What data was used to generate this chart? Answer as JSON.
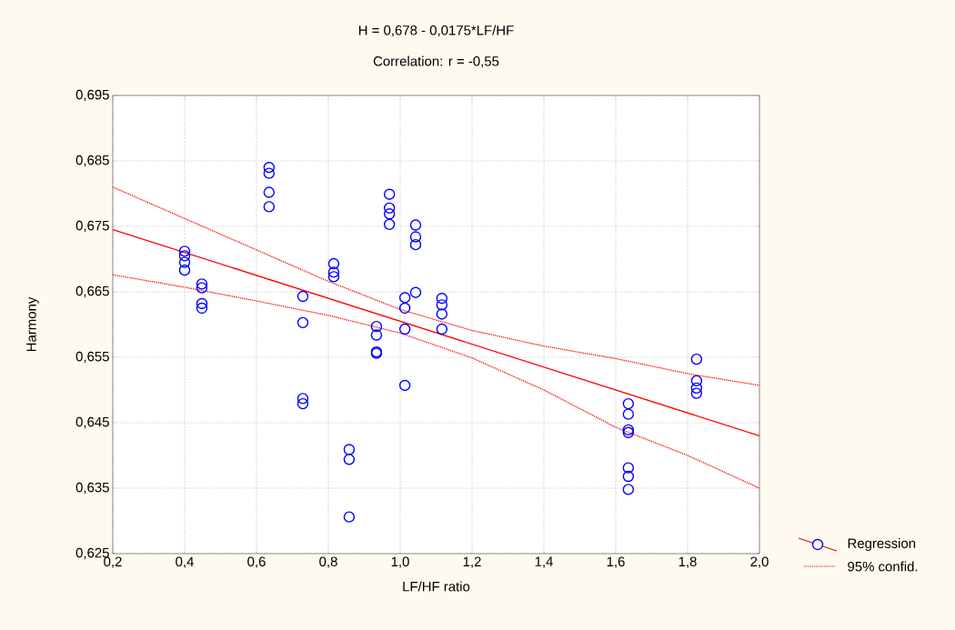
{
  "chart_data": {
    "type": "scatter",
    "title": "H = 0,678 - 0,0175*LF/HF",
    "subtitle": "Correlation: r = -0,55",
    "xlabel": "LF/HF ratio",
    "ylabel": "Harmony",
    "xlim": [
      0.2,
      2.0
    ],
    "ylim": [
      0.625,
      0.695
    ],
    "xticks": [
      {
        "value": 0.2,
        "label": "0,2"
      },
      {
        "value": 0.4,
        "label": "0,4"
      },
      {
        "value": 0.6,
        "label": "0,6"
      },
      {
        "value": 0.8,
        "label": "0,8"
      },
      {
        "value": 1.0,
        "label": "1,0"
      },
      {
        "value": 1.2,
        "label": "1,2"
      },
      {
        "value": 1.4,
        "label": "1,4"
      },
      {
        "value": 1.6,
        "label": "1,6"
      },
      {
        "value": 1.8,
        "label": "1,8"
      },
      {
        "value": 2.0,
        "label": "2,0"
      }
    ],
    "yticks": [
      {
        "value": 0.625,
        "label": "0,625"
      },
      {
        "value": 0.635,
        "label": "0,635"
      },
      {
        "value": 0.645,
        "label": "0,645"
      },
      {
        "value": 0.655,
        "label": "0,655"
      },
      {
        "value": 0.665,
        "label": "0,665"
      },
      {
        "value": 0.675,
        "label": "0,675"
      },
      {
        "value": 0.685,
        "label": "0,685"
      },
      {
        "value": 0.695,
        "label": "0,695"
      }
    ],
    "grid": true,
    "legend": "right",
    "series": [
      {
        "color": "#0000ff",
        "marker": "circle",
        "x": [
          0.4,
          0.4,
          0.4,
          0.4,
          0.448,
          0.448,
          0.448,
          0.448,
          0.635,
          0.635,
          0.635,
          0.635,
          0.729,
          0.729,
          0.729,
          0.729,
          0.815,
          0.815,
          0.815,
          0.858,
          0.858,
          0.858,
          0.934,
          0.934,
          0.934,
          0.934,
          0.97,
          0.97,
          0.97,
          0.97,
          1.013,
          1.013,
          1.013,
          1.013,
          1.043,
          1.043,
          1.043,
          1.043,
          1.116,
          1.116,
          1.116,
          1.116,
          1.635,
          1.635,
          1.635,
          1.635,
          1.635,
          1.635,
          1.635,
          1.825,
          1.825,
          1.825,
          1.825
        ],
        "values": [
          0.6712,
          0.6705,
          0.6695,
          0.6683,
          0.6662,
          0.6656,
          0.6632,
          0.6625,
          0.684,
          0.6831,
          0.6802,
          0.678,
          0.6643,
          0.6603,
          0.6487,
          0.6479,
          0.6693,
          0.668,
          0.6673,
          0.6409,
          0.6394,
          0.6306,
          0.6597,
          0.6584,
          0.6558,
          0.6556,
          0.6799,
          0.6778,
          0.6769,
          0.6753,
          0.6641,
          0.6625,
          0.6593,
          0.6507,
          0.6752,
          0.6734,
          0.6722,
          0.6649,
          0.664,
          0.663,
          0.6616,
          0.6593,
          0.6479,
          0.6463,
          0.6439,
          0.6435,
          0.6381,
          0.6368,
          0.6348,
          0.6547,
          0.6514,
          0.6503,
          0.6495
        ]
      },
      {
        "type": "line",
        "name": "Regression",
        "color": "#ff0000",
        "line_style": "solid",
        "x": [
          0.2,
          2.0
        ],
        "values": [
          0.6745,
          0.643
        ]
      },
      {
        "type": "line",
        "name": "95% confid.",
        "color": "#ff0000",
        "line_style": "dotted",
        "x": [
          0.2,
          0.4,
          0.6,
          0.8,
          1.0,
          1.2,
          1.4,
          1.6,
          1.8,
          2.0
        ],
        "values": [
          0.681,
          0.6762,
          0.6714,
          0.6666,
          0.6623,
          0.6591,
          0.6567,
          0.6548,
          0.6525,
          0.6507
        ]
      },
      {
        "type": "line",
        "color": "#ff0000",
        "line_style": "dotted",
        "x": [
          0.2,
          0.4,
          0.6,
          0.8,
          1.0,
          1.2,
          1.4,
          1.6,
          1.8,
          2.0
        ],
        "values": [
          0.6676,
          0.6657,
          0.6636,
          0.6614,
          0.6587,
          0.6549,
          0.65,
          0.6443,
          0.64,
          0.635
        ]
      }
    ]
  }
}
